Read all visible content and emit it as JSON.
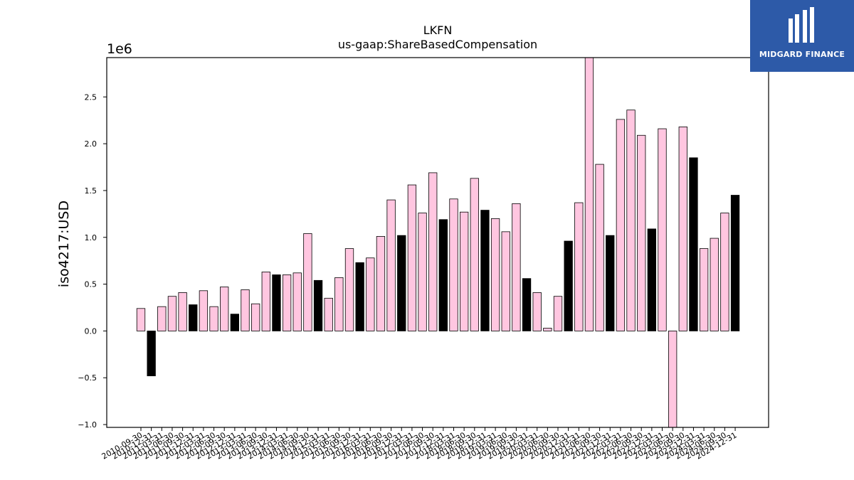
{
  "brand": {
    "name": "MIDGARD FINANCE",
    "bg_color": "#2d5aa8"
  },
  "chart_data": {
    "type": "bar",
    "title": "LKFN",
    "subtitle": "us-gaap:ShareBasedCompensation",
    "ylabel": "iso4217:USD",
    "xlabel": "",
    "y_scale_label": "1e6",
    "ylim": [
      -1.03,
      2.92
    ],
    "yticks": [
      -1.0,
      -0.5,
      0.0,
      0.5,
      1.0,
      1.5,
      2.0,
      2.5
    ],
    "ytick_labels": [
      "−1.0",
      "−0.5",
      "0.0",
      "0.5",
      "1.0",
      "1.5",
      "2.0",
      "2.5"
    ],
    "grid": false,
    "colors": {
      "quarter": "#ffc6e0",
      "annual": "#000000",
      "edge": "#000000"
    },
    "categories": [
      "2010-09-30",
      "2010-12-31",
      "2011-03-31",
      "2011-06-30",
      "2011-09-30",
      "2011-12-31",
      "2012-03-31",
      "2012-06-30",
      "2012-09-30",
      "2012-12-31",
      "2013-03-31",
      "2013-06-30",
      "2013-09-30",
      "2013-12-31",
      "2014-03-31",
      "2014-06-30",
      "2014-09-30",
      "2014-12-31",
      "2015-03-31",
      "2015-06-30",
      "2015-09-30",
      "2015-12-31",
      "2016-03-31",
      "2016-06-30",
      "2016-09-30",
      "2016-12-31",
      "2017-03-31",
      "2017-06-30",
      "2017-09-30",
      "2017-12-31",
      "2018-03-31",
      "2018-06-30",
      "2018-09-30",
      "2018-12-31",
      "2019-03-31",
      "2019-06-30",
      "2019-09-30",
      "2019-12-31",
      "2020-03-31",
      "2020-06-30",
      "2020-09-30",
      "2020-12-31",
      "2021-03-31",
      "2021-06-30",
      "2021-09-30",
      "2021-12-31",
      "2022-03-31",
      "2022-06-30",
      "2022-09-30",
      "2022-12-31",
      "2023-03-31",
      "2023-06-30",
      "2023-09-30",
      "2023-12-31",
      "2024-03-31",
      "2024-06-30",
      "2024-09-30",
      "2024-12-31"
    ],
    "values": [
      0.24,
      -0.48,
      0.26,
      0.37,
      0.41,
      0.28,
      0.43,
      0.26,
      0.47,
      0.18,
      0.44,
      0.29,
      0.63,
      0.6,
      0.6,
      0.62,
      1.04,
      0.54,
      0.35,
      0.57,
      0.88,
      0.73,
      0.78,
      1.01,
      1.4,
      1.02,
      1.56,
      1.26,
      1.69,
      1.19,
      1.41,
      1.27,
      1.63,
      1.29,
      1.2,
      1.06,
      1.36,
      0.56,
      0.41,
      0.03,
      0.37,
      0.96,
      1.37,
      2.92,
      1.78,
      1.02,
      2.26,
      2.36,
      2.09,
      1.09,
      2.16,
      -1.03,
      2.18,
      1.85,
      0.88,
      0.99,
      1.26,
      1.45
    ],
    "annual": [
      false,
      true,
      false,
      false,
      false,
      true,
      false,
      false,
      false,
      true,
      false,
      false,
      false,
      true,
      false,
      false,
      false,
      true,
      false,
      false,
      false,
      true,
      false,
      false,
      false,
      true,
      false,
      false,
      false,
      true,
      false,
      false,
      false,
      true,
      false,
      false,
      false,
      true,
      false,
      false,
      false,
      true,
      false,
      false,
      false,
      true,
      false,
      false,
      false,
      true,
      false,
      false,
      false,
      true,
      false,
      false,
      false,
      true
    ]
  }
}
